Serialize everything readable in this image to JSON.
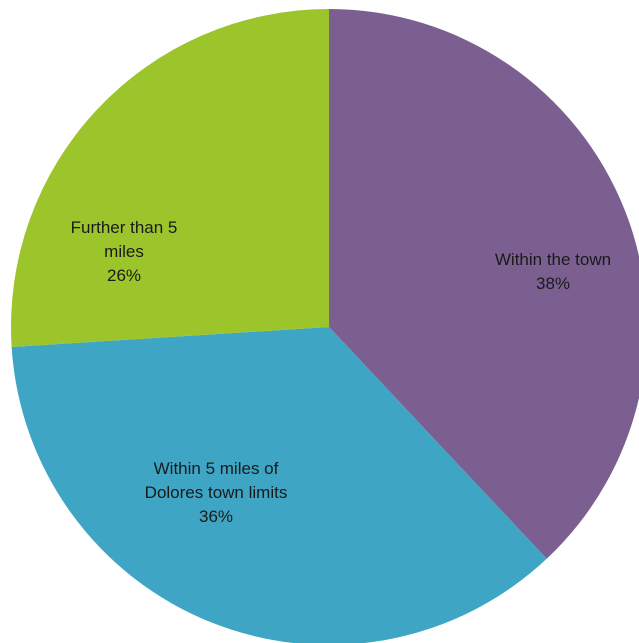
{
  "chart_data": {
    "type": "pie",
    "start_angle_deg": 0,
    "direction": "clockwise",
    "slices": [
      {
        "label_lines": [
          "Within the town"
        ],
        "value": 38,
        "value_label": "38%",
        "color": "#7b5f90"
      },
      {
        "label_lines": [
          "Within 5 miles of",
          "Dolores town limits"
        ],
        "value": 36,
        "value_label": "36%",
        "color": "#3ea5c4"
      },
      {
        "label_lines": [
          "Further than 5",
          "miles"
        ],
        "value": 26,
        "value_label": "26%",
        "color": "#9bc52b"
      }
    ]
  }
}
